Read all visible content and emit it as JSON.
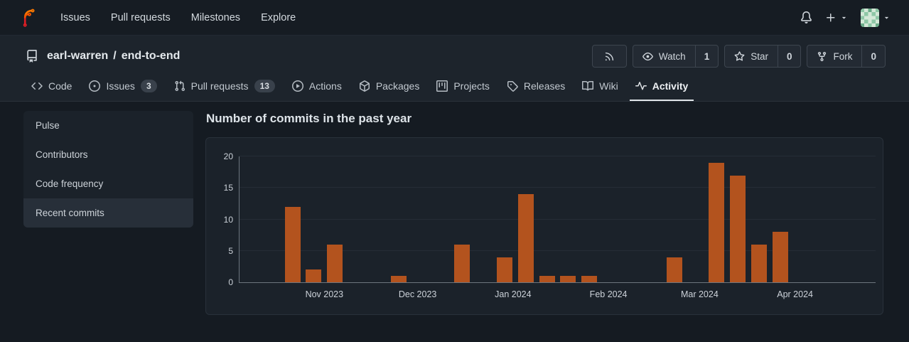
{
  "navbar": {
    "logo_icon": "forgejo-logo",
    "links": [
      {
        "label": "Issues"
      },
      {
        "label": "Pull requests"
      },
      {
        "label": "Milestones"
      },
      {
        "label": "Explore"
      }
    ],
    "right": {
      "notifications_icon": "bell-icon",
      "create_icon": "plus-icon",
      "dropdown_icon": "triangle-down-icon",
      "avatar_icon": "identicon-avatar"
    }
  },
  "repo": {
    "icon": "repo-icon",
    "owner": "earl-warren",
    "separator": "/",
    "name": "end-to-end"
  },
  "repo_actions": {
    "rss": {
      "icon": "rss-icon"
    },
    "watch": {
      "icon": "eye-icon",
      "label": "Watch",
      "count": "1"
    },
    "star": {
      "icon": "star-icon",
      "label": "Star",
      "count": "0"
    },
    "fork": {
      "icon": "fork-icon",
      "label": "Fork",
      "count": "0"
    }
  },
  "tabs": [
    {
      "label": "Code",
      "icon": "code-icon"
    },
    {
      "label": "Issues",
      "icon": "issue-icon",
      "badge": "3"
    },
    {
      "label": "Pull requests",
      "icon": "pull-request-icon",
      "badge": "13"
    },
    {
      "label": "Actions",
      "icon": "play-icon"
    },
    {
      "label": "Packages",
      "icon": "package-icon"
    },
    {
      "label": "Projects",
      "icon": "project-icon"
    },
    {
      "label": "Releases",
      "icon": "tag-icon"
    },
    {
      "label": "Wiki",
      "icon": "book-icon"
    },
    {
      "label": "Activity",
      "icon": "pulse-icon",
      "active": true
    }
  ],
  "sidebar": {
    "items": [
      {
        "label": "Pulse"
      },
      {
        "label": "Contributors"
      },
      {
        "label": "Code frequency"
      },
      {
        "label": "Recent commits",
        "active": true
      }
    ]
  },
  "chart_data": {
    "type": "bar",
    "title": "Number of commits in the past year",
    "xlabel": "",
    "ylabel": "",
    "ylim": [
      0,
      20
    ],
    "y_ticks": [
      0,
      5,
      10,
      15,
      20
    ],
    "grid": true,
    "legend": null,
    "bar_color": "#b3531e",
    "weeks_total": 30,
    "bars": [
      {
        "week": 2,
        "value": 12
      },
      {
        "week": 3,
        "value": 2
      },
      {
        "week": 4,
        "value": 6
      },
      {
        "week": 7,
        "value": 1
      },
      {
        "week": 10,
        "value": 6
      },
      {
        "week": 12,
        "value": 4
      },
      {
        "week": 13,
        "value": 14
      },
      {
        "week": 14,
        "value": 1
      },
      {
        "week": 15,
        "value": 1
      },
      {
        "week": 16,
        "value": 1
      },
      {
        "week": 20,
        "value": 4
      },
      {
        "week": 22,
        "value": 19
      },
      {
        "week": 23,
        "value": 17
      },
      {
        "week": 24,
        "value": 6
      },
      {
        "week": 25,
        "value": 8
      }
    ],
    "x_ticks": [
      {
        "label": "Nov 2023",
        "pos": 4.0
      },
      {
        "label": "Dec 2023",
        "pos": 8.4
      },
      {
        "label": "Jan 2024",
        "pos": 12.9
      },
      {
        "label": "Feb 2024",
        "pos": 17.4
      },
      {
        "label": "Mar 2024",
        "pos": 21.7
      },
      {
        "label": "Apr 2024",
        "pos": 26.2
      }
    ]
  },
  "colors": {
    "page_bg": "#151b22",
    "header_bg": "#1d242c",
    "card_bg": "#1b222a",
    "bar_orange": "#b3531e"
  }
}
